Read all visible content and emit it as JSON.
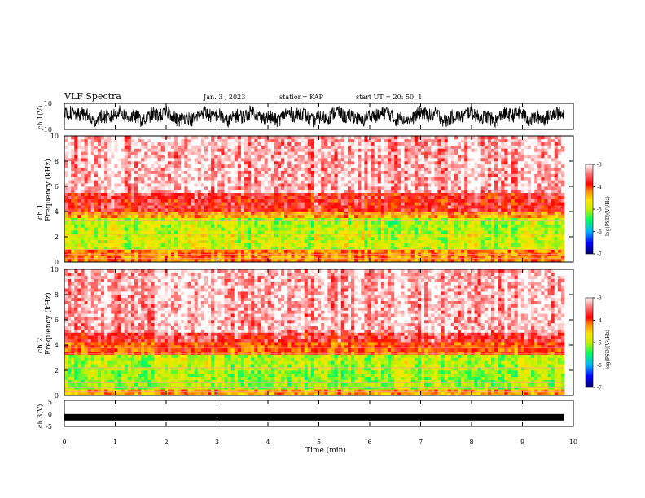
{
  "header": {
    "title": "VLF Spectra",
    "date": "Jan. 3 , 2023",
    "station": "station= KAP",
    "start": "start UT = 20: 50: 1"
  },
  "chart_data": [
    {
      "type": "line",
      "panel": "ch1-waveform",
      "ylabel": "ch.1(V)",
      "ylim": [
        -10,
        10
      ],
      "yticks": [
        "10",
        "-10"
      ],
      "xlim": [
        0,
        10
      ],
      "note": "noisy waveform approx. within ±7 V, ending near 9.8 min",
      "color": "#000000"
    },
    {
      "type": "heatmap",
      "panel": "ch1-spectrogram",
      "ylabel": "ch.1 Frequency (kHz)",
      "ylim": [
        0,
        10
      ],
      "yticks": [
        "0",
        "2",
        "4",
        "6",
        "8",
        "10"
      ],
      "xlim": [
        0,
        10
      ],
      "bands": [
        {
          "from": 0.0,
          "to": 1.0,
          "level": -4.2
        },
        {
          "from": 1.0,
          "to": 2.2,
          "level": -4.9
        },
        {
          "from": 2.2,
          "to": 3.5,
          "level": -5.0
        },
        {
          "from": 3.5,
          "to": 4.0,
          "level": -4.3
        },
        {
          "from": 4.0,
          "to": 5.5,
          "level": -3.7
        },
        {
          "from": 5.5,
          "to": 10.0,
          "level": -3.2
        }
      ],
      "colorbar": {
        "label": "log(PSD)(V²/Hz)",
        "ticks": [
          "-3",
          "-4",
          "-5",
          "-6",
          "-7"
        ],
        "range": [
          -7,
          -3
        ]
      }
    },
    {
      "type": "heatmap",
      "panel": "ch2-spectrogram",
      "ylabel": "ch.2 Frequency (kHz)",
      "ylim": [
        0,
        10
      ],
      "yticks": [
        "0",
        "2",
        "4",
        "6",
        "8",
        "10"
      ],
      "xlim": [
        0,
        10
      ],
      "bands": [
        {
          "from": 0.0,
          "to": 0.6,
          "level": -4.3
        },
        {
          "from": 0.6,
          "to": 2.0,
          "level": -5.1
        },
        {
          "from": 2.0,
          "to": 3.3,
          "level": -5.0
        },
        {
          "from": 3.3,
          "to": 4.2,
          "level": -4.0
        },
        {
          "from": 4.2,
          "to": 5.0,
          "level": -3.6
        },
        {
          "from": 5.0,
          "to": 10.0,
          "level": -3.2
        }
      ],
      "colorbar": {
        "label": "log(PSD)(V²/Hz)",
        "ticks": [
          "-3",
          "-4",
          "-5",
          "-6",
          "-7"
        ],
        "range": [
          -7,
          -3
        ]
      }
    },
    {
      "type": "line",
      "panel": "ch3-waveform",
      "ylabel": "ch.3(V)",
      "ylim": [
        -5,
        5
      ],
      "yticks": [
        "5",
        "0",
        "-5"
      ],
      "xlim": [
        0,
        10
      ],
      "note": "dense constant signal near -1.5 V",
      "level": -1.5,
      "color": "#000000"
    }
  ],
  "xaxis": {
    "label": "Time (min)",
    "ticks": [
      "0",
      "1",
      "2",
      "3",
      "4",
      "5",
      "6",
      "7",
      "8",
      "9",
      "10"
    ]
  },
  "colors": {
    "scale": [
      "#00006e",
      "#0000ff",
      "#00b4ff",
      "#00ff60",
      "#c8f000",
      "#ffe600",
      "#ff8c00",
      "#ff0000",
      "#ff7878",
      "#ffffff"
    ]
  }
}
